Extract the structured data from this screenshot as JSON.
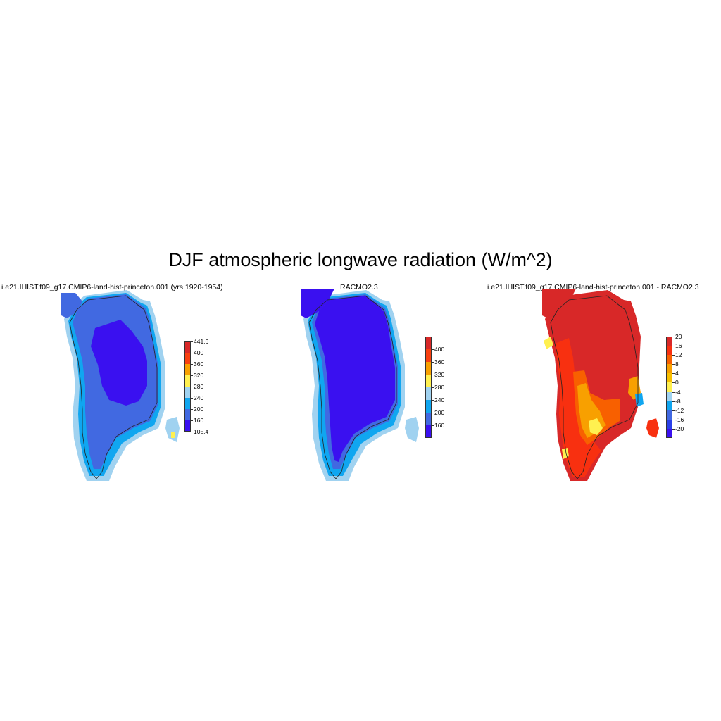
{
  "title": "DJF atmospheric longwave radiation (W/m^2)",
  "panels": [
    {
      "title": "i.e21.IHIST.f09_g17.CMIP6-land-hist-princeton.001 (yrs 1920-1954)",
      "colorbar": {
        "colors": [
          "#3a10f0",
          "#4169e1",
          "#10a6f0",
          "#a0d2f0",
          "#fff050",
          "#f8a000",
          "#f84010",
          "#d82828"
        ],
        "labels": [
          "105.4",
          "160",
          "200",
          "240",
          "280",
          "320",
          "360",
          "400",
          "441.6"
        ]
      }
    },
    {
      "title": "RACMO2.3",
      "colorbar": {
        "colors": [
          "#3a10f0",
          "#4169e1",
          "#10a6f0",
          "#a0d2f0",
          "#fff050",
          "#f8a000",
          "#f84010",
          "#d82828"
        ],
        "labels": [
          "160",
          "200",
          "240",
          "280",
          "320",
          "360",
          "400"
        ]
      }
    },
    {
      "title": "i.e21.IHIST.f09_g17.CMIP6-land-hist-princeton.001 - RACMO2.3",
      "colorbar": {
        "colors": [
          "#3a10f0",
          "#2a40e8",
          "#4169e1",
          "#10a6f0",
          "#a0d2f0",
          "#fff050",
          "#f8c000",
          "#f8a000",
          "#f86000",
          "#f83010",
          "#d82828"
        ],
        "labels": [
          "-20",
          "-16",
          "-12",
          "-8",
          "-4",
          "0",
          "4",
          "8",
          "12",
          "16",
          "20"
        ]
      }
    }
  ]
}
